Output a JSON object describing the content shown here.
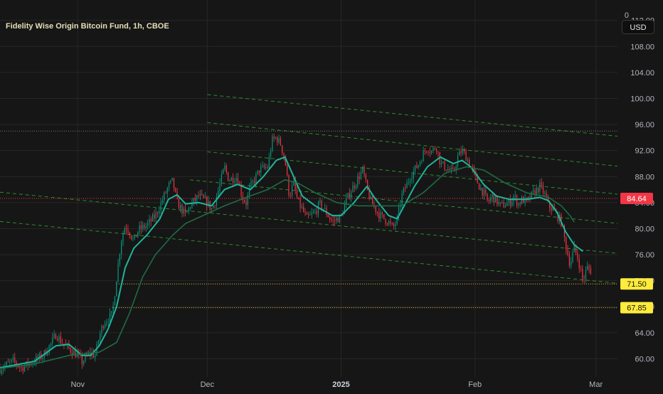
{
  "header": {
    "symbol_title": "Fidelity Wise Origin Bitcoin Fund, 1h, CBOE",
    "currency_button": "USD"
  },
  "colors": {
    "background": "#161616",
    "grid": "#262626",
    "axis_text": "#b2b5be",
    "candle_up": "#089981",
    "candle_down": "#f23645",
    "fast_ma": "#1fb59b",
    "slow_ma": "#1f6b45",
    "channel_lines": "#2e8b2e",
    "last_price_badge": "#f23645",
    "level_badge": "#ffeb3b",
    "level_line": "#e6c847",
    "last_price_line": "#f23645",
    "resistance_line": "#aaaaaa"
  },
  "chart_data": {
    "type": "candlestick",
    "title": "Fidelity Wise Origin Bitcoin Fund, 1h, CBOE",
    "currency": "USD",
    "y_axis": {
      "range": [
        57.2,
        113.5
      ],
      "ticks": [
        60.0,
        64.0,
        68.0,
        72.0,
        76.0,
        80.0,
        84.0,
        88.0,
        92.0,
        96.0,
        100.0,
        104.0,
        108.0,
        112.0
      ],
      "tick_labels": [
        "60.00",
        "64.00",
        "68.00",
        "72.00",
        "76.00",
        "80.00",
        "84.00",
        "88.00",
        "92.00",
        "96.00",
        "100.00",
        "104.00",
        "108.00",
        "112.00"
      ],
      "top_label": "0"
    },
    "x_axis": {
      "range": [
        "2024-10-14",
        "2025-03-06"
      ],
      "ticks": [
        "2024-11-01",
        "2024-12-01",
        "2025-01-01",
        "2025-02-01",
        "2025-03-01"
      ],
      "tick_labels": [
        "Nov",
        "Dec",
        "2025",
        "Feb",
        "Mar"
      ],
      "bold_tick": "2025"
    },
    "grid": true,
    "price_series": [
      [
        "2024-10-14",
        58.5
      ],
      [
        "2024-10-17",
        59.6
      ],
      [
        "2024-10-19",
        58.6
      ],
      [
        "2024-10-22",
        59.7
      ],
      [
        "2024-10-24",
        60.5
      ],
      [
        "2024-10-26",
        62.5
      ],
      [
        "2024-10-27",
        63.8
      ],
      [
        "2024-10-28",
        62.8
      ],
      [
        "2024-10-30",
        61.5
      ],
      [
        "2024-11-01",
        60.5
      ],
      [
        "2024-11-02",
        59.5
      ],
      [
        "2024-11-04",
        61.0
      ],
      [
        "2024-11-05",
        60.4
      ],
      [
        "2024-11-06",
        63.5
      ],
      [
        "2024-11-07",
        65.5
      ],
      [
        "2024-11-09",
        66.8
      ],
      [
        "2024-11-10",
        72.5
      ],
      [
        "2024-11-11",
        78.0
      ],
      [
        "2024-11-12",
        80.5
      ],
      [
        "2024-11-13",
        79.5
      ],
      [
        "2024-11-14",
        78.0
      ],
      [
        "2024-11-15",
        79.8
      ],
      [
        "2024-11-17",
        80.5
      ],
      [
        "2024-11-19",
        82.0
      ],
      [
        "2024-11-21",
        85.0
      ],
      [
        "2024-11-22",
        86.5
      ],
      [
        "2024-11-23",
        87.3
      ],
      [
        "2024-11-24",
        84.0
      ],
      [
        "2024-11-25",
        83.0
      ],
      [
        "2024-11-26",
        82.0
      ],
      [
        "2024-11-27",
        83.5
      ],
      [
        "2024-11-29",
        85.0
      ],
      [
        "2024-12-01",
        84.0
      ],
      [
        "2024-12-02",
        83.0
      ],
      [
        "2024-12-03",
        84.5
      ],
      [
        "2024-12-04",
        87.0
      ],
      [
        "2024-12-05",
        89.5
      ],
      [
        "2024-12-06",
        87.5
      ],
      [
        "2024-12-08",
        88.0
      ],
      [
        "2024-12-09",
        85.0
      ],
      [
        "2024-12-10",
        84.0
      ],
      [
        "2024-12-11",
        86.5
      ],
      [
        "2024-12-12",
        87.5
      ],
      [
        "2024-12-13",
        89.0
      ],
      [
        "2024-12-15",
        89.5
      ],
      [
        "2024-12-16",
        93.5
      ],
      [
        "2024-12-17",
        94.0
      ],
      [
        "2024-12-18",
        93.0
      ],
      [
        "2024-12-19",
        90.5
      ],
      [
        "2024-12-20",
        85.0
      ],
      [
        "2024-12-21",
        87.0
      ],
      [
        "2024-12-22",
        84.0
      ],
      [
        "2024-12-23",
        83.0
      ],
      [
        "2024-12-24",
        81.5
      ],
      [
        "2024-12-26",
        82.5
      ],
      [
        "2024-12-27",
        83.8
      ],
      [
        "2024-12-28",
        83.0
      ],
      [
        "2024-12-30",
        81.0
      ],
      [
        "2024-12-31",
        81.5
      ],
      [
        "2025-01-01",
        81.8
      ],
      [
        "2025-01-02",
        84.0
      ],
      [
        "2025-01-03",
        85.5
      ],
      [
        "2025-01-06",
        89.0
      ],
      [
        "2025-01-07",
        86.0
      ],
      [
        "2025-01-08",
        84.0
      ],
      [
        "2025-01-09",
        83.0
      ],
      [
        "2025-01-10",
        82.0
      ],
      [
        "2025-01-12",
        81.0
      ],
      [
        "2025-01-13",
        80.0
      ],
      [
        "2025-01-14",
        81.5
      ],
      [
        "2025-01-15",
        85.0
      ],
      [
        "2025-01-16",
        86.5
      ],
      [
        "2025-01-17",
        88.0
      ],
      [
        "2025-01-19",
        90.0
      ],
      [
        "2025-01-20",
        91.5
      ],
      [
        "2025-01-21",
        92.5
      ],
      [
        "2025-01-22",
        91.8
      ],
      [
        "2025-01-23",
        92.8
      ],
      [
        "2025-01-24",
        90.0
      ],
      [
        "2025-01-26",
        89.0
      ],
      [
        "2025-01-27",
        88.5
      ],
      [
        "2025-01-28",
        91.0
      ],
      [
        "2025-01-29",
        92.0
      ],
      [
        "2025-01-30",
        91.0
      ],
      [
        "2025-01-31",
        89.5
      ],
      [
        "2025-02-02",
        86.5
      ],
      [
        "2025-02-03",
        85.5
      ],
      [
        "2025-02-04",
        84.0
      ],
      [
        "2025-02-05",
        85.0
      ],
      [
        "2025-02-06",
        84.2
      ],
      [
        "2025-02-07",
        83.5
      ],
      [
        "2025-02-09",
        84.0
      ],
      [
        "2025-02-10",
        85.0
      ],
      [
        "2025-02-11",
        83.8
      ],
      [
        "2025-02-12",
        84.5
      ],
      [
        "2025-02-13",
        84.0
      ],
      [
        "2025-02-14",
        85.0
      ],
      [
        "2025-02-16",
        86.5
      ],
      [
        "2025-02-17",
        85.5
      ],
      [
        "2025-02-18",
        83.5
      ],
      [
        "2025-02-19",
        83.0
      ],
      [
        "2025-02-20",
        82.0
      ],
      [
        "2025-02-21",
        81.0
      ],
      [
        "2025-02-22",
        77.5
      ],
      [
        "2025-02-23",
        74.5
      ],
      [
        "2025-02-24",
        77.0
      ],
      [
        "2025-02-25",
        75.0
      ],
      [
        "2025-02-26",
        72.0
      ],
      [
        "2025-02-27",
        74.0
      ],
      [
        "2025-02-28",
        73.5
      ]
    ],
    "moving_averages": [
      {
        "role": "fast",
        "points": [
          [
            "2024-10-14",
            58.6
          ],
          [
            "2024-10-22",
            59.6
          ],
          [
            "2024-10-27",
            62.0
          ],
          [
            "2024-10-30",
            62.2
          ],
          [
            "2024-11-02",
            60.5
          ],
          [
            "2024-11-04",
            60.5
          ],
          [
            "2024-11-06",
            62.0
          ],
          [
            "2024-11-08",
            64.5
          ],
          [
            "2024-11-10",
            68.0
          ],
          [
            "2024-11-12",
            74.0
          ],
          [
            "2024-11-14",
            77.0
          ],
          [
            "2024-11-17",
            79.0
          ],
          [
            "2024-11-20",
            81.5
          ],
          [
            "2024-11-22",
            84.5
          ],
          [
            "2024-11-24",
            85.2
          ],
          [
            "2024-11-26",
            83.8
          ],
          [
            "2024-11-29",
            84.0
          ],
          [
            "2024-12-02",
            83.5
          ],
          [
            "2024-12-05",
            86.0
          ],
          [
            "2024-12-08",
            86.8
          ],
          [
            "2024-12-11",
            86.0
          ],
          [
            "2024-12-14",
            88.0
          ],
          [
            "2024-12-17",
            90.5
          ],
          [
            "2024-12-19",
            91.0
          ],
          [
            "2024-12-21",
            88.0
          ],
          [
            "2024-12-23",
            85.0
          ],
          [
            "2024-12-26",
            83.5
          ],
          [
            "2024-12-30",
            82.0
          ],
          [
            "2025-01-01",
            82.0
          ],
          [
            "2025-01-04",
            84.0
          ],
          [
            "2025-01-07",
            86.5
          ],
          [
            "2025-01-09",
            84.5
          ],
          [
            "2025-01-12",
            82.0
          ],
          [
            "2025-01-14",
            81.5
          ],
          [
            "2025-01-16",
            84.0
          ],
          [
            "2025-01-18",
            86.5
          ],
          [
            "2025-01-21",
            89.5
          ],
          [
            "2025-01-24",
            91.0
          ],
          [
            "2025-01-27",
            90.0
          ],
          [
            "2025-01-29",
            90.5
          ],
          [
            "2025-01-31",
            89.5
          ],
          [
            "2025-02-03",
            86.8
          ],
          [
            "2025-02-06",
            85.0
          ],
          [
            "2025-02-09",
            84.5
          ],
          [
            "2025-02-13",
            84.5
          ],
          [
            "2025-02-16",
            84.8
          ],
          [
            "2025-02-18",
            84.3
          ],
          [
            "2025-02-20",
            82.5
          ],
          [
            "2025-02-22",
            79.5
          ],
          [
            "2025-02-24",
            77.5
          ],
          [
            "2025-02-26",
            76.5
          ]
        ]
      },
      {
        "role": "slow",
        "points": [
          [
            "2024-10-14",
            58.5
          ],
          [
            "2024-10-22",
            59.2
          ],
          [
            "2024-10-30",
            60.5
          ],
          [
            "2024-11-06",
            61.0
          ],
          [
            "2024-11-10",
            62.5
          ],
          [
            "2024-11-13",
            67.0
          ],
          [
            "2024-11-16",
            72.5
          ],
          [
            "2024-11-19",
            76.0
          ],
          [
            "2024-11-23",
            79.0
          ],
          [
            "2024-11-26",
            80.8
          ],
          [
            "2024-11-30",
            82.0
          ],
          [
            "2024-12-05",
            83.5
          ],
          [
            "2024-12-10",
            84.8
          ],
          [
            "2024-12-15",
            86.0
          ],
          [
            "2024-12-19",
            87.5
          ],
          [
            "2024-12-22",
            87.0
          ],
          [
            "2024-12-26",
            85.5
          ],
          [
            "2024-12-31",
            84.0
          ],
          [
            "2025-01-05",
            83.5
          ],
          [
            "2025-01-10",
            83.5
          ],
          [
            "2025-01-15",
            83.5
          ],
          [
            "2025-01-20",
            85.5
          ],
          [
            "2025-01-25",
            88.5
          ],
          [
            "2025-01-30",
            89.5
          ],
          [
            "2025-02-03",
            89.0
          ],
          [
            "2025-02-08",
            87.0
          ],
          [
            "2025-02-13",
            85.5
          ],
          [
            "2025-02-18",
            84.8
          ],
          [
            "2025-02-21",
            83.5
          ],
          [
            "2025-02-23",
            82.0
          ],
          [
            "2025-02-24",
            81.0
          ]
        ]
      }
    ],
    "channel_lines": [
      {
        "from": [
          "2024-12-01",
          100.6
        ],
        "to": [
          "2025-03-06",
          94.2
        ]
      },
      {
        "from": [
          "2024-12-01",
          96.3
        ],
        "to": [
          "2025-03-06",
          89.6
        ]
      },
      {
        "from": [
          "2024-12-01",
          91.8
        ],
        "to": [
          "2025-03-06",
          85.3
        ]
      },
      {
        "from": [
          "2024-11-27",
          87.5
        ],
        "to": [
          "2025-03-06",
          80.8
        ]
      },
      {
        "from": [
          "2024-10-14",
          85.6
        ],
        "to": [
          "2025-03-06",
          76.2
        ]
      },
      {
        "from": [
          "2024-10-14",
          81.1
        ],
        "to": [
          "2025-03-06",
          71.6
        ]
      }
    ],
    "resistance_line": {
      "from": "2024-10-14",
      "to": "2025-03-06",
      "value": 95.0
    },
    "last_price": {
      "value": 84.64,
      "label": "84.64"
    },
    "levels": [
      {
        "value": 71.5,
        "label": "71.50",
        "from": "2024-11-10"
      },
      {
        "value": 67.85,
        "label": "67.85",
        "from": "2024-11-09"
      }
    ]
  }
}
